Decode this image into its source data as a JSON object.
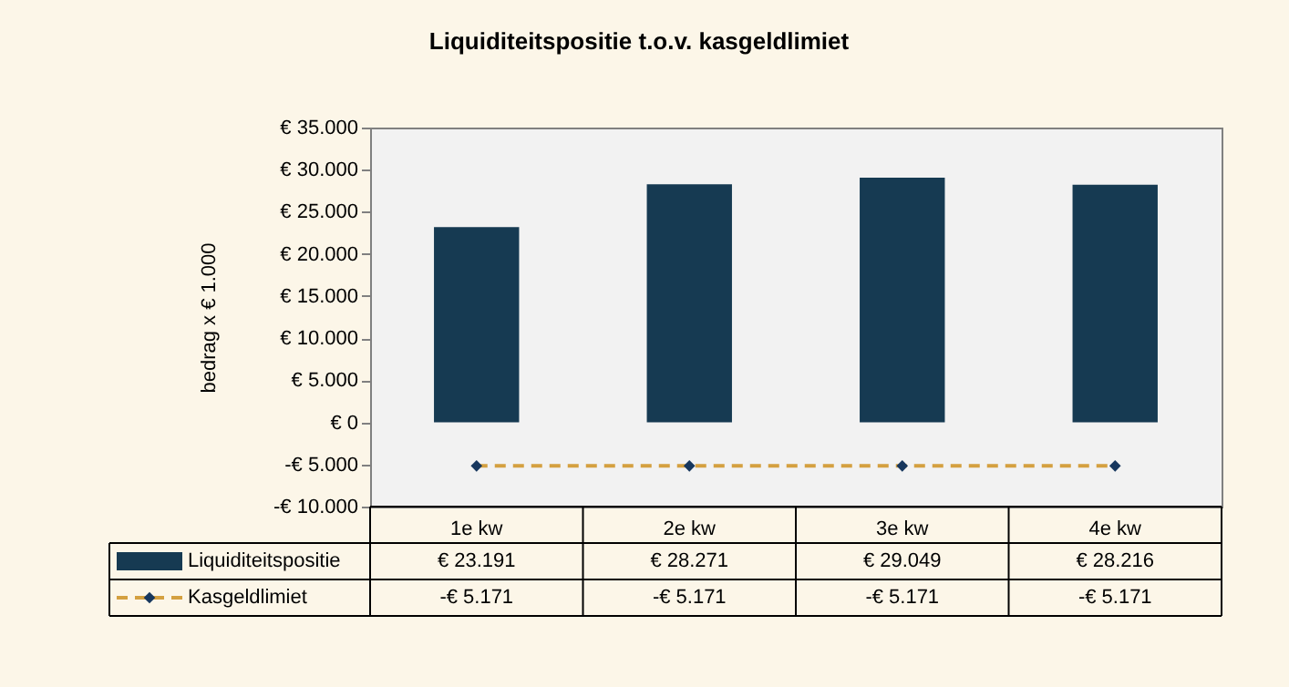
{
  "chart_data": {
    "type": "bar",
    "title": "Liquiditeitspositie t.o.v. kasgeldlimiet",
    "ylabel": "bedrag x € 1.000",
    "categories": [
      "1e kw",
      "2e kw",
      "3e kw",
      "4e kw"
    ],
    "series": [
      {
        "name": "Liquiditeitspositie",
        "color": "#163a52",
        "values": [
          23191,
          28271,
          29049,
          28216
        ],
        "value_labels": [
          "€ 23.191",
          "€ 28.271",
          "€ 29.049",
          "€ 28.216"
        ]
      },
      {
        "name": "Kasgeldlimiet",
        "type": "line",
        "color": "#d4a040",
        "marker": "diamond",
        "line_style": "dashed",
        "values": [
          -5171,
          -5171,
          -5171,
          -5171
        ],
        "value_labels": [
          "-€ 5.171",
          "-€ 5.171",
          "-€ 5.171",
          "-€ 5.171"
        ]
      }
    ],
    "ylim": [
      -10000,
      35000
    ],
    "yticks": [
      {
        "value": -10000,
        "label": "-€ 10.000"
      },
      {
        "value": -5000,
        "label": "-€ 5.000"
      },
      {
        "value": 0,
        "label": "€ 0"
      },
      {
        "value": 5000,
        "label": "€ 5.000"
      },
      {
        "value": 10000,
        "label": "€ 10.000"
      },
      {
        "value": 15000,
        "label": "€ 15.000"
      },
      {
        "value": 20000,
        "label": "€ 20.000"
      },
      {
        "value": 25000,
        "label": "€ 25.000"
      },
      {
        "value": 30000,
        "label": "€ 30.000"
      },
      {
        "value": 35000,
        "label": "€ 35.000"
      }
    ],
    "grid": false,
    "legend": "bottom"
  }
}
